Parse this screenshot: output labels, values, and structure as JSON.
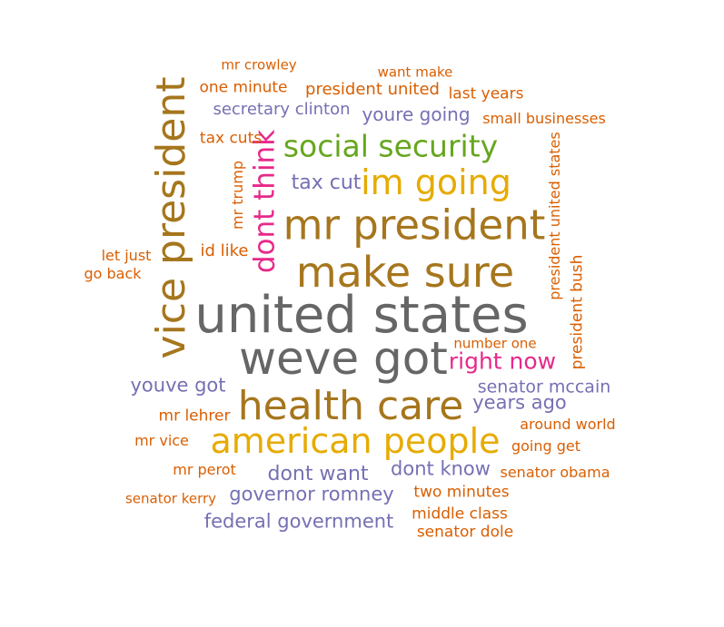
{
  "colors": {
    "orange": "#D95F02",
    "purple": "#7570B3",
    "magenta": "#E7298A",
    "green": "#66A61E",
    "gold": "#E6AB02",
    "brown": "#A6761D",
    "gray": "#666666"
  },
  "words": [
    {
      "text": "united states",
      "color": "#666666"
    },
    {
      "text": "weve got",
      "color": "#666666"
    },
    {
      "text": "mr president",
      "color": "#A6761D"
    },
    {
      "text": "make sure",
      "color": "#A6761D"
    },
    {
      "text": "health care",
      "color": "#A6761D"
    },
    {
      "text": "american people",
      "color": "#E6AB02"
    },
    {
      "text": "vice president",
      "color": "#A6761D"
    },
    {
      "text": "im going",
      "color": "#E6AB02"
    },
    {
      "text": "social security",
      "color": "#66A61E"
    },
    {
      "text": "dont think",
      "color": "#E7298A"
    },
    {
      "text": "right now",
      "color": "#E7298A"
    },
    {
      "text": "tax cut",
      "color": "#7570B3"
    },
    {
      "text": "dont want",
      "color": "#7570B3"
    },
    {
      "text": "dont know",
      "color": "#7570B3"
    },
    {
      "text": "governor romney",
      "color": "#7570B3"
    },
    {
      "text": "federal government",
      "color": "#7570B3"
    },
    {
      "text": "youve got",
      "color": "#7570B3"
    },
    {
      "text": "years ago",
      "color": "#7570B3"
    },
    {
      "text": "senator mccain",
      "color": "#7570B3"
    },
    {
      "text": "youre going",
      "color": "#7570B3"
    },
    {
      "text": "secretary clinton",
      "color": "#7570B3"
    },
    {
      "text": "president united",
      "color": "#D95F02"
    },
    {
      "text": "one minute",
      "color": "#D95F02"
    },
    {
      "text": "last years",
      "color": "#D95F02"
    },
    {
      "text": "small businesses",
      "color": "#D95F02"
    },
    {
      "text": "tax cuts",
      "color": "#D95F02"
    },
    {
      "text": "mr trump",
      "color": "#D95F02"
    },
    {
      "text": "id like",
      "color": "#D95F02"
    },
    {
      "text": "let just",
      "color": "#D95F02"
    },
    {
      "text": "go back",
      "color": "#D95F02"
    },
    {
      "text": "president united states",
      "color": "#D95F02"
    },
    {
      "text": "president bush",
      "color": "#D95F02"
    },
    {
      "text": "number one",
      "color": "#D95F02"
    },
    {
      "text": "around world",
      "color": "#D95F02"
    },
    {
      "text": "going get",
      "color": "#D95F02"
    },
    {
      "text": "mr lehrer",
      "color": "#D95F02"
    },
    {
      "text": "mr vice",
      "color": "#D95F02"
    },
    {
      "text": "mr perot",
      "color": "#D95F02"
    },
    {
      "text": "senator obama",
      "color": "#D95F02"
    },
    {
      "text": "senator kerry",
      "color": "#D95F02"
    },
    {
      "text": "two minutes",
      "color": "#D95F02"
    },
    {
      "text": "middle class",
      "color": "#D95F02"
    },
    {
      "text": "senator dole",
      "color": "#D95F02"
    },
    {
      "text": "want make",
      "color": "#D95F02"
    },
    {
      "text": "mr crowley",
      "color": "#D95F02"
    }
  ]
}
